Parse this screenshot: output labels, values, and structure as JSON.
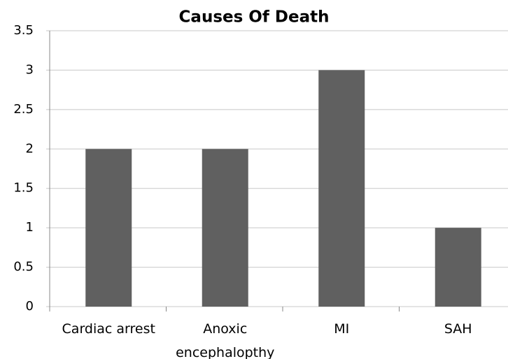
{
  "chart_data": {
    "type": "bar",
    "title": "Causes Of Death",
    "categories": [
      "Cardiac arrest",
      "Anoxic encephalopthy",
      "MI",
      "SAH"
    ],
    "values": [
      2,
      2,
      3,
      1
    ],
    "color": "#606060",
    "ylim": [
      0,
      3.5
    ],
    "yticks": [
      0,
      0.5,
      1,
      1.5,
      2,
      2.5,
      3,
      3.5
    ],
    "grid": true
  }
}
